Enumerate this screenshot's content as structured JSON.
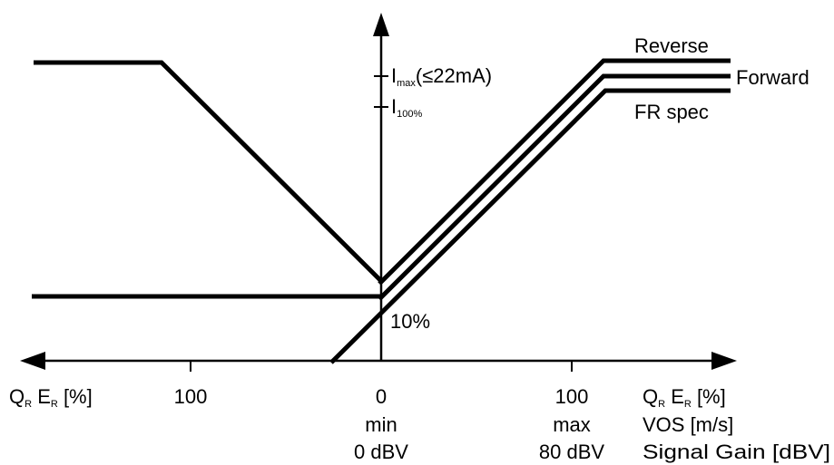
{
  "curves": {
    "reverse": "Reverse",
    "forward": "Forward",
    "fr_spec": "FR spec"
  },
  "y_axis": {
    "imax_main": "I",
    "imax_sub": "max",
    "imax_note": "(≤22mA)",
    "i100_main": "I",
    "i100_sub": "100%",
    "ten_pct": "10%"
  },
  "x_axis": {
    "left_end_q": "Q",
    "left_end_r1": "R",
    "left_end_e": " E",
    "left_end_r2": "R",
    "left_end_unit": " [%]",
    "left_tick": "100",
    "center_tick": "0",
    "right_tick": "100",
    "right_end_q": "Q",
    "right_end_r1": "R",
    "right_end_e": " E",
    "right_end_r2": "R",
    "right_end_unit": " [%]",
    "center_min": "min",
    "center_dbv": "0 dBV",
    "right_max": "max",
    "right_dbv": "80 dBV",
    "vos": "VOS [m/s]",
    "signal_gain": "Signal Gain [dBV]"
  },
  "colors": {
    "line": "#000000",
    "background": "#ffffff"
  }
}
